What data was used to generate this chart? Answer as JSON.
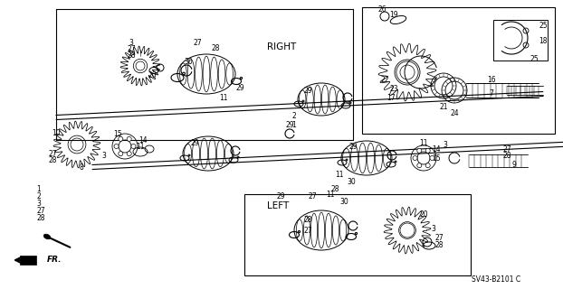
{
  "bg": "#ffffff",
  "fig_w": 6.22,
  "fig_h": 3.2,
  "dpi": 100,
  "catalog": "SV43-B2101 C",
  "right_label": "RIGHT",
  "left_label": "LEFT",
  "fr_label": "FR.",
  "legend_items": [
    "1",
    "2",
    "3",
    "27",
    "28"
  ]
}
